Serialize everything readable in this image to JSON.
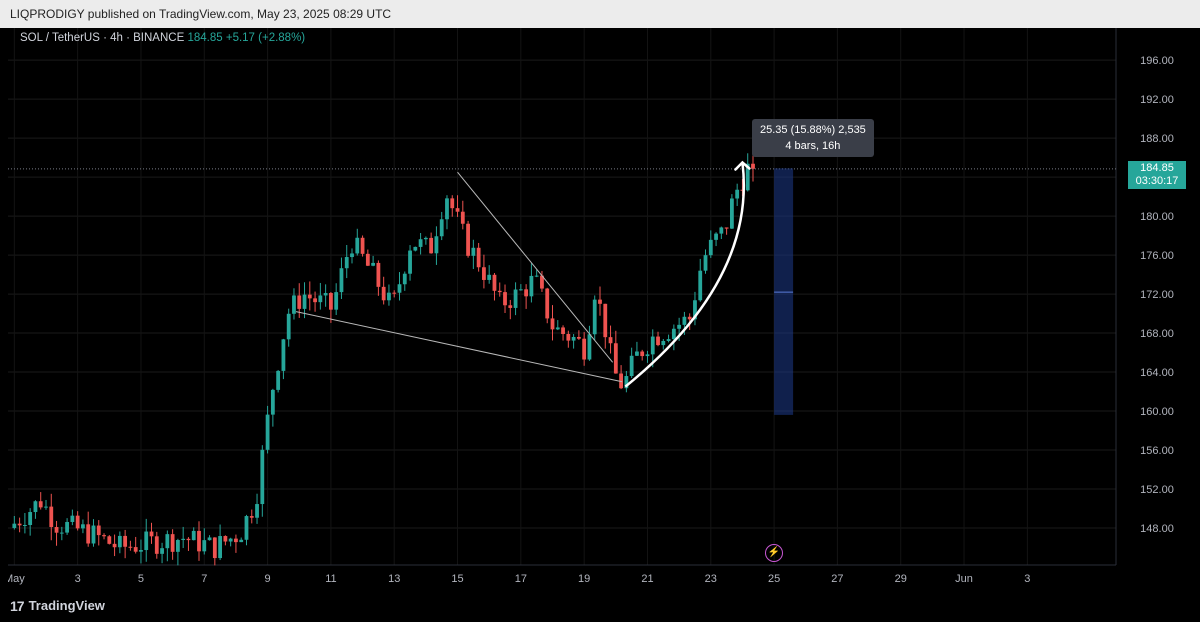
{
  "header": {
    "published_text": "LIQPRODIGY published on TradingView.com, May 23, 2025 08:29 UTC"
  },
  "legend": {
    "symbol": "SOL / TetherUS · 4h · BINANCE",
    "price": "184.85",
    "change": "+5.17 (+2.88%)"
  },
  "footer": {
    "brand": "TradingView"
  },
  "price_tag": {
    "price": "184.85",
    "countdown": "03:30:17"
  },
  "measure_tooltip": {
    "line1": "25.35 (15.88%) 2,535",
    "line2": "4 bars, 16h"
  },
  "colors": {
    "up": "#26a69a",
    "down": "#ef5350",
    "measure": "#1e3a8a"
  },
  "chart_data": {
    "type": "candlestick",
    "symbol": "SOL / TetherUS",
    "interval": "4h",
    "exchange": "BINANCE",
    "x_tick_labels": [
      "May",
      "3",
      "5",
      "7",
      "9",
      "11",
      "13",
      "15",
      "17",
      "19",
      "21",
      "23",
      "25",
      "27",
      "29",
      "Jun",
      "3"
    ],
    "y_ticks": [
      148,
      152,
      156,
      160,
      164,
      168,
      172,
      176,
      180,
      184,
      188,
      192,
      196
    ],
    "y_tick_labels": [
      "148.00",
      "152.00",
      "156.00",
      "160.00",
      "164.00",
      "168.00",
      "172.00",
      "176.00",
      "180.00",
      "",
      "188.00",
      "192.00",
      "196.00"
    ],
    "ylim": [
      144.2,
      199.3
    ],
    "x_range_days": [
      -0.2,
      34.8
    ],
    "waypoints": [
      [
        0,
        148.0
      ],
      [
        1.0,
        150.8
      ],
      [
        1.5,
        148.5
      ],
      [
        2.5,
        147.5
      ],
      [
        3.5,
        146.0
      ],
      [
        4.5,
        146.5
      ],
      [
        5.5,
        147.0
      ],
      [
        6.5,
        146.0
      ],
      [
        7.3,
        147.5
      ],
      [
        7.8,
        151.0
      ],
      [
        8.3,
        162.0
      ],
      [
        8.8,
        170.0
      ],
      [
        9.3,
        172.0
      ],
      [
        10.2,
        170.5
      ],
      [
        10.8,
        177.5
      ],
      [
        11.5,
        174.0
      ],
      [
        12.1,
        170.5
      ],
      [
        12.7,
        177.5
      ],
      [
        13.3,
        176.5
      ],
      [
        13.8,
        182.5
      ],
      [
        14.4,
        177.5
      ],
      [
        14.9,
        175.0
      ],
      [
        15.5,
        171.0
      ],
      [
        16.1,
        172.0
      ],
      [
        16.6,
        173.5
      ],
      [
        17.2,
        168.5
      ],
      [
        17.8,
        167.5
      ],
      [
        18.2,
        166.5
      ],
      [
        18.5,
        172.5
      ],
      [
        18.8,
        169.0
      ],
      [
        19.1,
        164.0
      ],
      [
        19.4,
        162.5
      ],
      [
        19.8,
        165.5
      ],
      [
        20.3,
        167.5
      ],
      [
        20.9,
        168.5
      ],
      [
        21.5,
        169.5
      ],
      [
        21.9,
        175.5
      ],
      [
        22.3,
        177.5
      ],
      [
        22.6,
        178.5
      ],
      [
        22.9,
        182.0
      ],
      [
        23.3,
        184.85
      ]
    ],
    "last_price": 184.85,
    "annotations": {
      "wedge_upper": [
        [
          14.0,
          184.5
        ],
        [
          18.9,
          165.0
        ]
      ],
      "wedge_lower": [
        [
          8.9,
          170.2
        ],
        [
          19.2,
          163.0
        ]
      ],
      "curve_arrow": [
        [
          19.3,
          162.5
        ],
        [
          22.5,
          176.0
        ],
        [
          23.0,
          185.5
        ]
      ],
      "measure_box": {
        "x0": 24.0,
        "x1": 24.6,
        "y0": 159.6,
        "y1": 184.9,
        "mid": 172.2
      }
    }
  }
}
